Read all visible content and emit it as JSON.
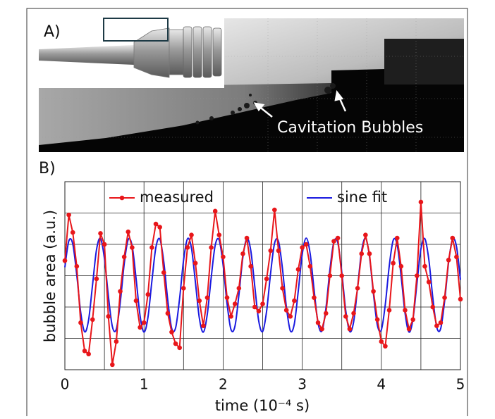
{
  "figure": {
    "panel_a": {
      "label": "A)",
      "annotation": "Cavitation Bubbles"
    },
    "panel_b": {
      "label": "B)"
    }
  },
  "chart_data": {
    "type": "line",
    "x_label": "time (10⁻⁴ s)",
    "y_label": "bubble area (a.u.)",
    "x": [
      0,
      0.05,
      0.1,
      0.15,
      0.2,
      0.25,
      0.3,
      0.35,
      0.4,
      0.45,
      0.5,
      0.55,
      0.6,
      0.65,
      0.7,
      0.75,
      0.8,
      0.85,
      0.9,
      0.95,
      1,
      1.05,
      1.1,
      1.15,
      1.2,
      1.25,
      1.3,
      1.35,
      1.4,
      1.45,
      1.5,
      1.55,
      1.6,
      1.65,
      1.7,
      1.75,
      1.8,
      1.85,
      1.9,
      1.95,
      2,
      2.05,
      2.1,
      2.15,
      2.2,
      2.25,
      2.3,
      2.35,
      2.4,
      2.45,
      2.5,
      2.55,
      2.6,
      2.65,
      2.7,
      2.75,
      2.8,
      2.85,
      2.9,
      2.95,
      3,
      3.05,
      3.1,
      3.15,
      3.2,
      3.25,
      3.3,
      3.35,
      3.4,
      3.45,
      3.5,
      3.55,
      3.6,
      3.65,
      3.7,
      3.75,
      3.8,
      3.85,
      3.9,
      3.95,
      4,
      4.05,
      4.1,
      4.15,
      4.2,
      4.25,
      4.3,
      4.35,
      4.4,
      4.45,
      4.5,
      4.55,
      4.6,
      4.65,
      4.7,
      4.75,
      4.8,
      4.85,
      4.9,
      4.95,
      5
    ],
    "series": [
      {
        "name": "measured",
        "color": "#e8161a",
        "markers": true,
        "smooth": false,
        "values": [
          3.48,
          4.94,
          4.38,
          3.3,
          1.5,
          0.6,
          0.5,
          1.6,
          2.9,
          4.35,
          4.0,
          1.7,
          0.16,
          0.9,
          2.5,
          3.6,
          4.4,
          3.9,
          2.2,
          1.35,
          1.5,
          2.4,
          3.9,
          4.65,
          4.55,
          3.1,
          1.8,
          1.2,
          0.83,
          0.7,
          2.6,
          3.9,
          4.3,
          3.4,
          2.2,
          1.4,
          2.3,
          3.9,
          5.06,
          4.3,
          3.6,
          2.3,
          1.7,
          2.1,
          2.6,
          3.7,
          4.2,
          3.3,
          2.0,
          1.87,
          2.1,
          2.9,
          3.8,
          5.1,
          3.8,
          2.6,
          1.9,
          1.7,
          2.2,
          3.2,
          3.9,
          4.0,
          3.3,
          2.3,
          1.5,
          1.3,
          1.8,
          3.0,
          4.1,
          4.2,
          3.0,
          1.7,
          1.3,
          1.8,
          2.6,
          3.7,
          4.3,
          3.7,
          2.5,
          1.6,
          0.9,
          0.75,
          1.9,
          3.4,
          4.2,
          3.3,
          1.9,
          1.3,
          1.6,
          3.0,
          5.35,
          3.3,
          2.8,
          2.0,
          1.4,
          1.5,
          2.3,
          3.5,
          4.2,
          3.6,
          2.25
        ]
      },
      {
        "name": "sine fit",
        "color": "#1a1ae0",
        "markers": false,
        "smooth": true,
        "values": [
          3.27,
          4.11,
          4.01,
          3.03,
          1.83,
          1.21,
          1.59,
          2.71,
          3.83,
          4.19,
          3.55,
          2.35,
          1.38,
          1.29,
          2.15,
          3.38,
          4.15,
          3.95,
          2.91,
          1.73,
          1.2,
          1.67,
          2.83,
          3.9,
          4.17,
          3.45,
          2.23,
          1.32,
          1.34,
          2.27,
          3.49,
          4.18,
          3.88,
          2.79,
          1.64,
          1.2,
          1.77,
          2.95,
          3.97,
          4.14,
          3.34,
          2.11,
          1.28,
          1.39,
          2.39,
          3.59,
          4.19,
          3.8,
          2.67,
          1.56,
          1.22,
          1.87,
          3.07,
          4.03,
          4.1,
          3.23,
          2.0,
          1.24,
          1.46,
          2.51,
          3.68,
          4.2,
          3.71,
          2.55,
          1.49,
          1.24,
          1.97,
          3.19,
          4.08,
          4.05,
          3.11,
          1.89,
          1.22,
          1.53,
          2.63,
          3.77,
          4.2,
          3.62,
          2.43,
          1.42,
          1.27,
          2.08,
          3.31,
          4.13,
          3.99,
          2.99,
          1.8,
          1.2,
          1.62,
          2.75,
          3.85,
          4.18,
          3.52,
          2.31,
          1.36,
          1.31,
          2.19,
          3.42,
          4.16,
          3.93,
          2.87
        ]
      }
    ],
    "xlim": [
      0,
      5
    ],
    "xticks": [
      0,
      1,
      2,
      3,
      4,
      5
    ],
    "minor_xticks": [
      0.5,
      1.5,
      2.5,
      3.5,
      4.5
    ],
    "ylim": [
      0,
      6
    ],
    "yticks": [
      1,
      2,
      3,
      4,
      5
    ],
    "ytick_labels": false,
    "grid": true,
    "legend": "top"
  }
}
